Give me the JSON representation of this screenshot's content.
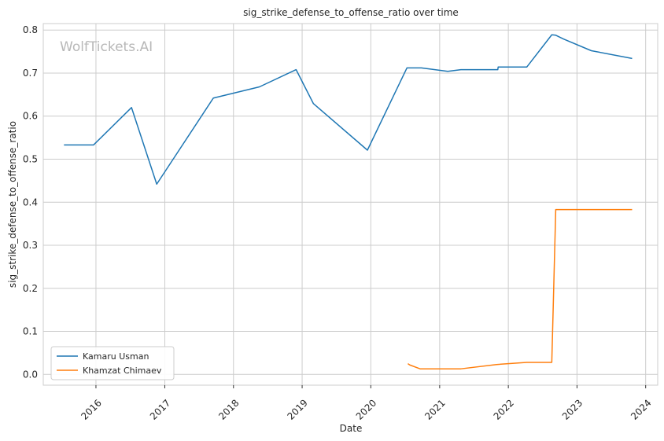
{
  "chart_data": {
    "type": "line",
    "title": "sig_strike_defense_to_offense_ratio over time",
    "xlabel": "Date",
    "ylabel": "sig_strike_defense_to_offense_ratio",
    "watermark": "WolfTickets.AI",
    "xlim": [
      "2015-03-27",
      "2024-03-05"
    ],
    "ylim": [
      -0.025,
      0.815
    ],
    "x_ticks": [
      "2016",
      "2017",
      "2018",
      "2019",
      "2020",
      "2021",
      "2022",
      "2023",
      "2024"
    ],
    "y_ticks": [
      "0.0",
      "0.1",
      "0.2",
      "0.3",
      "0.4",
      "0.5",
      "0.6",
      "0.7",
      "0.8"
    ],
    "grid": true,
    "legend_position": "lower-left",
    "series": [
      {
        "name": "Kamaru Usman",
        "color": "#1f77b4",
        "points": [
          {
            "x": "2015-07-15",
            "y": 0.533
          },
          {
            "x": "2015-12-19",
            "y": 0.533
          },
          {
            "x": "2016-07-08",
            "y": 0.62
          },
          {
            "x": "2016-11-19",
            "y": 0.442
          },
          {
            "x": "2017-09-16",
            "y": 0.642
          },
          {
            "x": "2018-05-19",
            "y": 0.668
          },
          {
            "x": "2018-11-30",
            "y": 0.708
          },
          {
            "x": "2019-03-02",
            "y": 0.629
          },
          {
            "x": "2019-12-14",
            "y": 0.521
          },
          {
            "x": "2020-07-11",
            "y": 0.712
          },
          {
            "x": "2020-09-26",
            "y": 0.712
          },
          {
            "x": "2021-02-13",
            "y": 0.704
          },
          {
            "x": "2021-04-24",
            "y": 0.708
          },
          {
            "x": "2021-11-06",
            "y": 0.708
          },
          {
            "x": "2021-11-08",
            "y": 0.714
          },
          {
            "x": "2022-04-09",
            "y": 0.714
          },
          {
            "x": "2022-08-20",
            "y": 0.789
          },
          {
            "x": "2022-09-10",
            "y": 0.788
          },
          {
            "x": "2022-10-22",
            "y": 0.779
          },
          {
            "x": "2023-03-18",
            "y": 0.752
          },
          {
            "x": "2023-10-21",
            "y": 0.734
          }
        ]
      },
      {
        "name": "Khamzat Chimaev",
        "color": "#ff7f0e",
        "points": [
          {
            "x": "2020-07-16",
            "y": 0.025
          },
          {
            "x": "2020-07-26",
            "y": 0.022
          },
          {
            "x": "2020-09-19",
            "y": 0.013
          },
          {
            "x": "2021-04-24",
            "y": 0.013
          },
          {
            "x": "2021-10-30",
            "y": 0.023
          },
          {
            "x": "2022-04-09",
            "y": 0.028
          },
          {
            "x": "2022-08-20",
            "y": 0.028
          },
          {
            "x": "2022-09-10",
            "y": 0.383
          },
          {
            "x": "2023-10-21",
            "y": 0.383
          }
        ]
      }
    ]
  }
}
